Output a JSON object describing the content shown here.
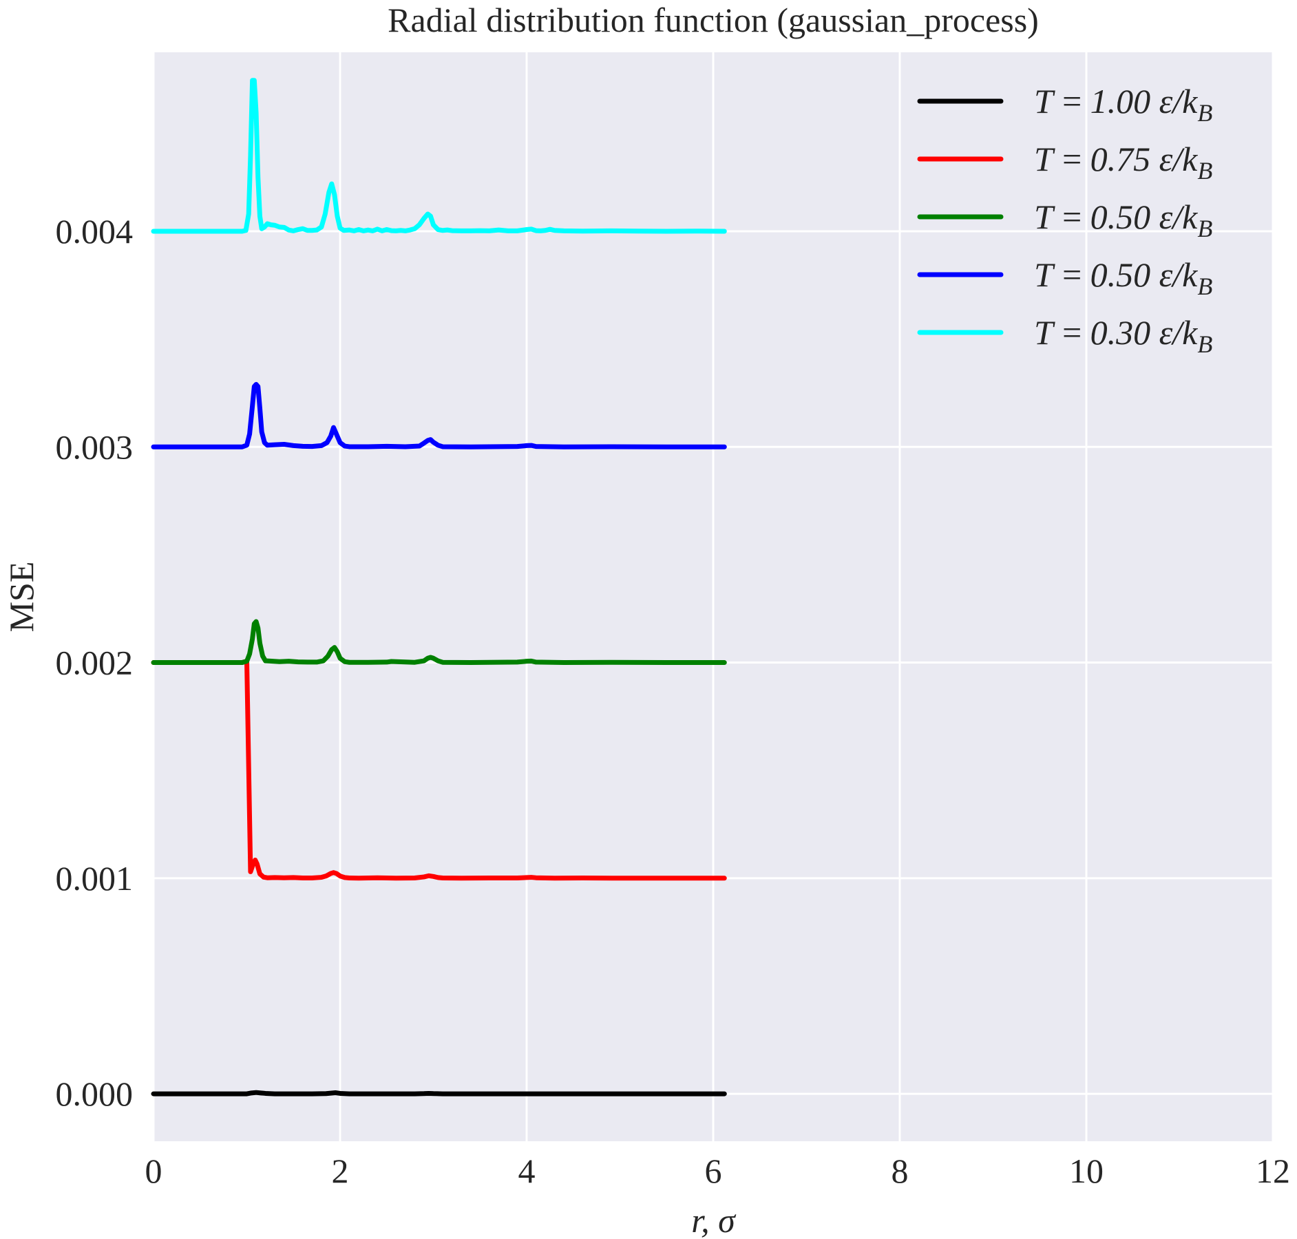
{
  "chart_data": {
    "type": "line",
    "title": "Radial distribution function (gaussian_process)",
    "xlabel": "r, σ",
    "ylabel": "MSE",
    "xlim": [
      0,
      12
    ],
    "ylim": [
      -0.00022,
      0.00483
    ],
    "xticks": [
      0,
      2,
      4,
      6,
      8,
      10,
      12
    ],
    "xtick_labels": [
      "0",
      "2",
      "4",
      "6",
      "8",
      "10",
      "12"
    ],
    "yticks": [
      0.0,
      0.001,
      0.002,
      0.003,
      0.004
    ],
    "ytick_labels": [
      "0.000",
      "0.001",
      "0.002",
      "0.003",
      "0.004"
    ],
    "grid": true,
    "background": "#eaeaf2",
    "legend_position": "top-right",
    "series": [
      {
        "name": "T = 1.00 ε/k_B",
        "label_math": "T = 1.00 ε/k",
        "label_sub": "B",
        "color": "#000000",
        "x": [
          0,
          0.95,
          1.0,
          1.05,
          1.1,
          1.15,
          1.2,
          1.3,
          1.5,
          1.7,
          1.85,
          1.9,
          1.95,
          2.0,
          2.1,
          2.3,
          2.5,
          2.8,
          2.9,
          2.95,
          3.0,
          3.1,
          3.4,
          3.7,
          4.0,
          4.3,
          4.6,
          5.0,
          5.5,
          6.12
        ],
        "y": [
          0,
          0,
          0,
          4e-06,
          6e-06,
          4e-06,
          2e-06,
          0,
          0,
          0,
          1e-06,
          3e-06,
          5e-06,
          2e-06,
          0,
          0,
          0,
          0,
          1e-06,
          2e-06,
          1e-06,
          0,
          0,
          0,
          0,
          0,
          0,
          0,
          0,
          0
        ]
      },
      {
        "name": "T = 0.75 ε/k_B",
        "label_math": "T = 0.75 ε/k",
        "label_sub": "B",
        "color": "#ff0000",
        "x": [
          0,
          0.95,
          1.0,
          1.04,
          1.07,
          1.09,
          1.11,
          1.14,
          1.18,
          1.22,
          1.3,
          1.4,
          1.5,
          1.6,
          1.7,
          1.8,
          1.85,
          1.9,
          1.93,
          1.96,
          2.0,
          2.05,
          2.1,
          2.2,
          2.4,
          2.6,
          2.8,
          2.9,
          2.95,
          3.0,
          3.05,
          3.1,
          3.3,
          3.6,
          3.9,
          4.0,
          4.05,
          4.1,
          4.3,
          4.6,
          5.0,
          5.5,
          6.12
        ],
        "y": [
          0.001,
          0.001,
          0.001006,
          3e-05,
          6.8e-05,
          8.4e-05,
          6.6e-05,
          2e-05,
          5e-06,
          2e-06,
          3e-06,
          2e-06,
          3e-06,
          1e-06,
          1e-06,
          4e-06,
          1e-05,
          2.2e-05,
          2.6e-05,
          2.2e-05,
          1e-05,
          3e-06,
          1e-06,
          0,
          2e-06,
          0,
          1e-06,
          6e-06,
          1.1e-05,
          8e-06,
          3e-06,
          1e-06,
          0,
          1e-06,
          1e-06,
          3e-06,
          4e-06,
          2e-06,
          0,
          1e-06,
          0,
          0,
          0
        ],
        "offset": 0.001
      },
      {
        "name": "T = 0.50 ε/k_B",
        "label_math": "T = 0.50 ε/k",
        "label_sub": "B",
        "color": "#008000",
        "x": [
          0,
          0.95,
          1.0,
          1.03,
          1.06,
          1.08,
          1.1,
          1.12,
          1.14,
          1.17,
          1.2,
          1.25,
          1.35,
          1.45,
          1.55,
          1.65,
          1.75,
          1.82,
          1.87,
          1.91,
          1.94,
          1.97,
          2.0,
          2.05,
          2.1,
          2.3,
          2.5,
          2.55,
          2.8,
          2.9,
          2.94,
          2.97,
          3.0,
          3.05,
          3.1,
          3.4,
          3.9,
          4.0,
          4.05,
          4.1,
          4.4,
          4.9,
          5.5,
          6.12
        ],
        "y": [
          0,
          0,
          6e-06,
          4e-05,
          0.00011,
          0.00018,
          0.00019,
          0.00016,
          9e-05,
          3e-05,
          8e-06,
          7e-06,
          4e-06,
          6e-06,
          3e-06,
          2e-06,
          2e-06,
          8e-06,
          3e-05,
          6e-05,
          7e-05,
          5e-05,
          2e-05,
          4e-06,
          1e-06,
          1e-06,
          2e-06,
          5e-06,
          1e-06,
          8e-06,
          2e-05,
          2.4e-05,
          2e-05,
          8e-06,
          1e-06,
          0,
          2e-06,
          6e-06,
          7e-06,
          2e-06,
          0,
          1e-06,
          0,
          0
        ],
        "offset": 0.002
      },
      {
        "name": "T = 0.50 ε/k_B",
        "label_math": "T = 0.50 ε/k",
        "label_sub": "B",
        "color": "#0000ff",
        "x": [
          0,
          0.95,
          1.0,
          1.03,
          1.06,
          1.08,
          1.1,
          1.12,
          1.14,
          1.16,
          1.19,
          1.22,
          1.3,
          1.4,
          1.5,
          1.6,
          1.7,
          1.8,
          1.86,
          1.9,
          1.93,
          1.96,
          2.0,
          2.05,
          2.1,
          2.3,
          2.5,
          2.7,
          2.85,
          2.9,
          2.94,
          2.97,
          3.0,
          3.05,
          3.1,
          3.4,
          3.9,
          4.0,
          4.05,
          4.1,
          4.4,
          4.9,
          5.5,
          6.12
        ],
        "y": [
          0,
          0,
          8e-06,
          6e-05,
          0.00019,
          0.00028,
          0.00029,
          0.00028,
          0.00018,
          7e-05,
          2e-05,
          8e-06,
          1e-05,
          1.2e-05,
          6e-06,
          3e-06,
          2e-06,
          6e-06,
          2e-05,
          5e-05,
          9e-05,
          6e-05,
          2e-05,
          4e-06,
          1e-06,
          1e-06,
          3e-06,
          1e-06,
          4e-06,
          1.8e-05,
          3e-05,
          3.4e-05,
          2.2e-05,
          8e-06,
          1e-06,
          0,
          2e-06,
          6e-06,
          7e-06,
          2e-06,
          0,
          1e-06,
          0,
          0
        ],
        "offset": 0.003
      },
      {
        "name": "T = 0.30 ε/k_B",
        "label_math": "T = 0.30 ε/k",
        "label_sub": "B",
        "color": "#00ffff",
        "x": [
          0,
          0.95,
          0.99,
          1.02,
          1.04,
          1.06,
          1.08,
          1.1,
          1.12,
          1.14,
          1.16,
          1.19,
          1.22,
          1.26,
          1.3,
          1.35,
          1.4,
          1.45,
          1.5,
          1.55,
          1.6,
          1.65,
          1.7,
          1.75,
          1.8,
          1.84,
          1.88,
          1.91,
          1.94,
          1.97,
          2.0,
          2.04,
          2.1,
          2.15,
          2.2,
          2.25,
          2.3,
          2.35,
          2.4,
          2.45,
          2.5,
          2.55,
          2.6,
          2.65,
          2.7,
          2.75,
          2.8,
          2.85,
          2.9,
          2.94,
          2.97,
          3.0,
          3.05,
          3.1,
          3.15,
          3.2,
          3.3,
          3.4,
          3.5,
          3.6,
          3.7,
          3.8,
          3.9,
          4.0,
          4.05,
          4.1,
          4.15,
          4.2,
          4.25,
          4.3,
          4.4,
          4.6,
          4.9,
          5.2,
          5.5,
          5.8,
          6.12
        ],
        "y": [
          0,
          0,
          4e-06,
          8e-05,
          0.00035,
          0.0007,
          0.0007,
          0.00055,
          0.00025,
          7e-05,
          1.2e-05,
          2e-05,
          3.5e-05,
          3e-05,
          2.8e-05,
          2e-05,
          1.8e-05,
          6e-06,
          2e-06,
          8e-06,
          1.2e-05,
          4e-06,
          4e-06,
          6e-06,
          2e-05,
          8e-05,
          0.00018,
          0.00022,
          0.00017,
          7e-05,
          1.5e-05,
          4e-06,
          6e-06,
          2e-06,
          8e-06,
          2e-06,
          6e-06,
          2e-06,
          1e-05,
          2e-06,
          8e-06,
          3e-06,
          2e-06,
          4e-06,
          2e-06,
          6e-06,
          1.2e-05,
          3e-05,
          6e-05,
          8e-05,
          7e-05,
          3e-05,
          8e-06,
          4e-06,
          6e-06,
          3e-06,
          2e-06,
          2e-06,
          3e-06,
          2e-06,
          6e-06,
          2e-06,
          2e-06,
          8e-06,
          1e-05,
          3e-06,
          2e-06,
          4e-06,
          9e-06,
          4e-06,
          2e-06,
          1e-06,
          2e-06,
          1e-06,
          0,
          1e-06,
          0
        ],
        "offset": 0.004
      }
    ]
  }
}
